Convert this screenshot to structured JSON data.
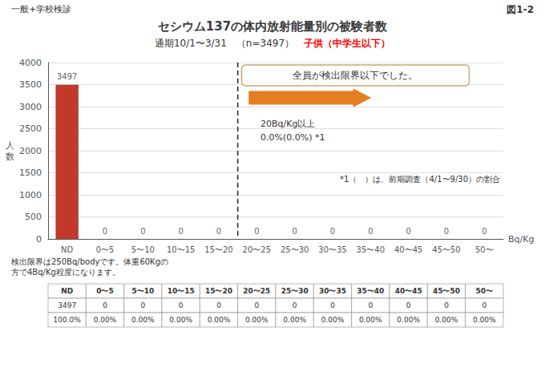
{
  "chart_data": {
    "type": "bar",
    "title": "セシウム137の体内放射能量別の被験者数",
    "subtitle": "通期10/1〜3/31　（n=3497）　",
    "subtitle_highlight": {
      "text": "子供（中学生以下）",
      "color": "red"
    },
    "header_left": "一般+学校検診",
    "header_right": "図1-2",
    "xlabel": "Bq/Kg",
    "ylabel": "人\n数",
    "categories": [
      "ND",
      "0〜5",
      "5〜10",
      "10〜15",
      "15〜20",
      "20〜25",
      "25〜30",
      "30〜35",
      "35〜40",
      "40〜45",
      "45〜50",
      "50〜"
    ],
    "values": [
      3497,
      0,
      0,
      0,
      0,
      0,
      0,
      0,
      0,
      0,
      0,
      0
    ],
    "color": "#c0392b",
    "data_labels": true,
    "ylim": [
      0,
      4000
    ],
    "yticks": [
      0,
      500,
      1000,
      1500,
      2000,
      2500,
      3000,
      3500,
      4000
    ],
    "grid": true,
    "threshold": {
      "before": "20〜25",
      "color": "#e67e22",
      "text": [
        "20Bq/Kg以上",
        "0.0%(0.0%) *1"
      ]
    },
    "callout": {
      "text": "全員が検出限界以下でした。",
      "color": "#c8a96e"
    },
    "notes": [
      "*1（　）は、前期調査（4/1〜9/30）の割合",
      "検出限界は250Bq/bodyです。体重60Kgの\n方で4Bq/Kg程度になります。"
    ],
    "table": {
      "header": [
        "ND",
        "0〜5",
        "5〜10",
        "10〜15",
        "15〜20",
        "20〜25",
        "25〜30",
        "30〜35",
        "35〜40",
        "40〜45",
        "45〜50",
        "50〜"
      ],
      "rows": [
        [
          "3497",
          "0",
          "0",
          "0",
          "0",
          "0",
          "0",
          "0",
          "0",
          "0",
          "0",
          "0"
        ],
        [
          "100.0%",
          "0.00%",
          "0.00%",
          "0.00%",
          "0.00%",
          "0.00%",
          "0.00%",
          "0.00%",
          "0.00%",
          "0.00%",
          "0.00%",
          "0.00%"
        ]
      ]
    }
  }
}
